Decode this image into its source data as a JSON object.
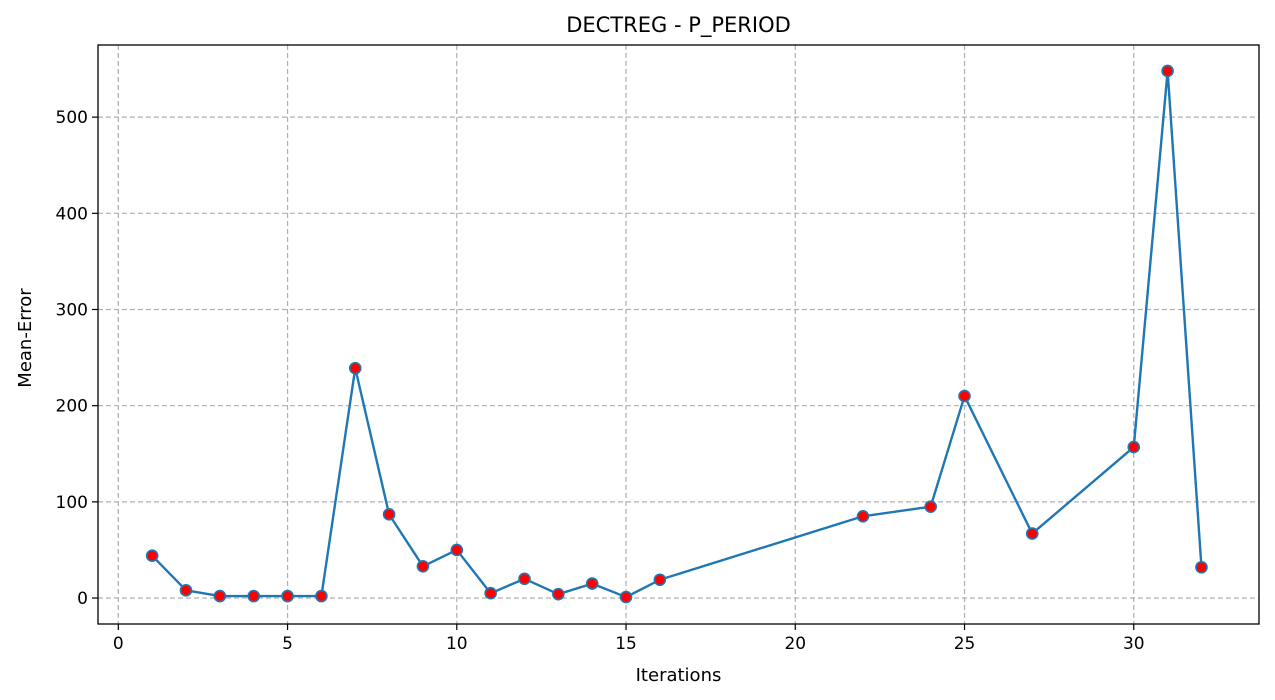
{
  "chart_data": {
    "type": "line",
    "title": "DECTREG - P_PERIOD",
    "xlabel": "Iterations",
    "ylabel": "Mean-Error",
    "xlim": [
      -0.6,
      33.7
    ],
    "ylim": [
      -27,
      575
    ],
    "xticks": [
      0,
      5,
      10,
      15,
      20,
      25,
      30
    ],
    "yticks": [
      0,
      100,
      200,
      300,
      400,
      500
    ],
    "grid": true,
    "series": [
      {
        "x": [
          1,
          2,
          3,
          4,
          5,
          6,
          7,
          8,
          9,
          10,
          11,
          12,
          13,
          14,
          15,
          16,
          22,
          24,
          25,
          27,
          30,
          31,
          32
        ],
        "y": [
          44,
          8,
          2,
          2,
          2,
          2,
          239,
          87,
          33,
          50,
          5,
          20,
          4,
          15,
          1,
          19,
          85,
          95,
          210,
          67,
          157,
          548,
          32
        ],
        "line_color": "#1f77b4",
        "marker_face_color": "#ff0000",
        "marker_edge_color": "#1f77b4"
      }
    ]
  }
}
